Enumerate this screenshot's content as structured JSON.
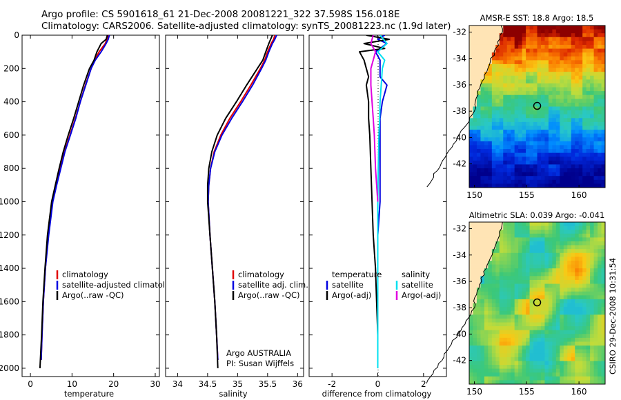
{
  "header": {
    "line1": "Argo profile: CS 5901618_61 21-Dec-2008 20081221_322 37.598S 156.018E",
    "line2": "Climatology: CARS2006. Satellite-adjusted climatology: synTS_20081223.nc (1.9d later)"
  },
  "colors": {
    "climatology": "#e00000",
    "satellite": "#0000e0",
    "argo": "#000000",
    "cyan": "#00e0f0",
    "magenta": "#e000e0"
  },
  "chart_data": [
    {
      "type": "line",
      "xlabel": "temperature",
      "ylabel": "",
      "xlim": [
        -2,
        31
      ],
      "ylim": [
        2050,
        0
      ],
      "xticks": [
        "0",
        "10",
        "20",
        "30"
      ],
      "xtick_values": [
        0,
        10,
        20,
        30
      ],
      "yticks": [
        "0",
        "200",
        "400",
        "600",
        "800",
        "1000",
        "1200",
        "1400",
        "1600",
        "1800",
        "2000"
      ],
      "ytick_values": [
        0,
        200,
        400,
        600,
        800,
        1000,
        1200,
        1400,
        1600,
        1800,
        2000
      ],
      "legend": [
        "climatology",
        "satellite-adjusted climatology",
        "Argo(..raw -QC)"
      ],
      "series": [
        {
          "name": "climatology",
          "color": "#e00000",
          "depth": [
            0,
            25,
            50,
            100,
            150,
            200,
            300,
            400,
            500,
            600,
            700,
            800,
            900,
            1000,
            1200,
            1400,
            1600,
            1800,
            1950
          ],
          "values": [
            18.8,
            18.4,
            18.0,
            16.5,
            15.5,
            14.6,
            13.2,
            12.0,
            10.8,
            9.5,
            8.2,
            7.2,
            6.2,
            5.3,
            4.3,
            3.6,
            3.1,
            2.8,
            2.6
          ]
        },
        {
          "name": "satellite-adjusted climatology",
          "color": "#0000e0",
          "depth": [
            0,
            25,
            50,
            100,
            150,
            200,
            300,
            400,
            500,
            600,
            700,
            800,
            900,
            1000,
            1200,
            1400,
            1600,
            1800,
            1950
          ],
          "values": [
            19.0,
            18.7,
            18.2,
            17.0,
            15.6,
            14.6,
            13.3,
            12.0,
            10.9,
            9.6,
            8.3,
            7.3,
            6.3,
            5.4,
            4.4,
            3.6,
            3.1,
            2.8,
            2.6
          ]
        },
        {
          "name": "Argo(..raw -QC)",
          "color": "#000000",
          "depth": [
            0,
            25,
            50,
            100,
            150,
            200,
            300,
            400,
            500,
            600,
            700,
            800,
            900,
            1000,
            1200,
            1400,
            1600,
            1800,
            2000
          ],
          "values": [
            18.5,
            18.2,
            17.0,
            16.0,
            15.3,
            14.2,
            12.8,
            11.6,
            10.4,
            9.1,
            7.9,
            6.9,
            6.0,
            5.1,
            4.1,
            3.5,
            3.0,
            2.7,
            2.3
          ]
        }
      ]
    },
    {
      "type": "line",
      "xlabel": "salinity",
      "xlim": [
        33.8,
        36.1
      ],
      "ylim": [
        2050,
        0
      ],
      "xticks": [
        "34",
        "34.5",
        "35",
        "35.5",
        "36"
      ],
      "xtick_values": [
        34,
        34.5,
        35,
        35.5,
        36
      ],
      "legend": [
        "climatology",
        "satellite adj. clim.",
        "Argo(..raw -QC)"
      ],
      "annotation": [
        "Argo AUSTRALIA",
        "PI: Susan Wijffels"
      ],
      "series": [
        {
          "name": "climatology",
          "color": "#e00000",
          "depth": [
            0,
            25,
            50,
            100,
            150,
            200,
            300,
            400,
            500,
            600,
            700,
            800,
            900,
            1000,
            1200,
            1400,
            1600,
            1800,
            1950
          ],
          "values": [
            35.62,
            35.6,
            35.56,
            35.5,
            35.45,
            35.38,
            35.22,
            35.05,
            34.87,
            34.72,
            34.61,
            34.55,
            34.52,
            34.51,
            34.54,
            34.58,
            34.62,
            34.65,
            34.67
          ]
        },
        {
          "name": "satellite adj. clim.",
          "color": "#0000e0",
          "depth": [
            0,
            25,
            50,
            100,
            150,
            200,
            300,
            400,
            500,
            600,
            700,
            800,
            900,
            1000,
            1200,
            1400,
            1600,
            1800,
            1950
          ],
          "values": [
            35.65,
            35.62,
            35.58,
            35.52,
            35.47,
            35.4,
            35.25,
            35.08,
            34.9,
            34.74,
            34.62,
            34.55,
            34.52,
            34.51,
            34.54,
            34.58,
            34.62,
            34.65,
            34.67
          ]
        },
        {
          "name": "Argo(..raw -QC)",
          "color": "#000000",
          "depth": [
            0,
            25,
            50,
            100,
            150,
            200,
            300,
            400,
            500,
            600,
            700,
            800,
            900,
            1000,
            1200,
            1400,
            1600,
            1800,
            2000
          ],
          "values": [
            35.58,
            35.55,
            35.52,
            35.47,
            35.42,
            35.33,
            35.15,
            34.98,
            34.8,
            34.66,
            34.57,
            34.52,
            34.5,
            34.5,
            34.54,
            34.58,
            34.62,
            34.65,
            34.67
          ]
        }
      ]
    },
    {
      "type": "line",
      "xlabel": "difference from climatology",
      "xlim": [
        -3.0,
        3.0
      ],
      "ylim": [
        2050,
        0
      ],
      "xticks": [
        "-2",
        "0",
        "2"
      ],
      "xtick_values": [
        -2,
        0,
        2
      ],
      "legend_left_title": "temperature",
      "legend_left": [
        "satellite",
        "Argo(-adj)"
      ],
      "legend_right_title": "salinity",
      "legend_right": [
        "satellite",
        "Argo(-adj)"
      ],
      "series": [
        {
          "name": "temperature satellite",
          "color": "#0000e0",
          "depth": [
            0,
            25,
            50,
            100,
            150,
            200,
            250,
            300,
            350,
            400,
            500,
            600,
            800,
            1000,
            1200,
            1400,
            1600,
            1800,
            2000
          ],
          "values": [
            0.3,
            0.0,
            0.4,
            -0.1,
            0.1,
            0.1,
            0.1,
            0.4,
            0.3,
            0.2,
            0.1,
            0.1,
            0.1,
            0.1,
            0.0,
            0.0,
            0.0,
            0.0,
            0.0
          ]
        },
        {
          "name": "temperature Argo(-adj)",
          "color": "#000000",
          "depth": [
            0,
            25,
            50,
            80,
            100,
            150,
            200,
            250,
            300,
            400,
            500,
            600,
            800,
            1000,
            1200,
            1400,
            1600,
            1800,
            1950
          ],
          "values": [
            -0.5,
            0.5,
            -0.6,
            0.3,
            -0.8,
            -0.6,
            -0.5,
            -0.4,
            -0.5,
            -0.4,
            -0.4,
            -0.35,
            -0.3,
            -0.25,
            -0.2,
            -0.1,
            -0.05,
            0.0,
            0.0
          ]
        },
        {
          "name": "salinity satellite",
          "color": "#00e0f0",
          "depth": [
            0,
            50,
            100,
            150,
            200,
            300,
            400,
            500,
            600,
            800,
            1000,
            1200,
            1400,
            1600,
            1800,
            2000
          ],
          "values": [
            0.1,
            0.4,
            0.0,
            0.3,
            0.2,
            0.15,
            0.1,
            0.08,
            0.05,
            0.02,
            0.0,
            0.0,
            0.0,
            0.0,
            0.0,
            0.0
          ]
        },
        {
          "name": "salinity Argo(-adj)",
          "color": "#e000e0",
          "depth": [
            0,
            50,
            100,
            150,
            200,
            300,
            400,
            500,
            600,
            800,
            1000
          ],
          "values": [
            -0.2,
            -0.3,
            -0.1,
            -0.2,
            -0.3,
            -0.3,
            -0.25,
            -0.2,
            -0.15,
            -0.1,
            0.0
          ]
        }
      ]
    }
  ],
  "maps": [
    {
      "title": "AMSR-E SST: 18.8 Argo: 18.5",
      "xticks": [
        "150",
        "155",
        "160"
      ],
      "xtick_values": [
        150,
        155,
        160
      ],
      "yticks": [
        "-32",
        "-34",
        "-36",
        "-38",
        "-40",
        "-42"
      ],
      "ytick_values": [
        -32,
        -34,
        -36,
        -38,
        -40,
        -42
      ],
      "lon_range": [
        149.5,
        162.5
      ],
      "lat_range": [
        -43.8,
        -31.5
      ],
      "marker": {
        "lon": 156.0,
        "lat": -37.6
      }
    },
    {
      "title": "Altimetric SLA: 0.039 Argo: -0.041",
      "xticks": [
        "150",
        "155",
        "160"
      ],
      "xtick_values": [
        150,
        155,
        160
      ],
      "yticks": [
        "-32",
        "-34",
        "-36",
        "-38",
        "-40",
        "-42"
      ],
      "ytick_values": [
        -32,
        -34,
        -36,
        -38,
        -40,
        -42
      ],
      "lon_range": [
        149.5,
        162.5
      ],
      "lat_range": [
        -43.8,
        -31.5
      ],
      "marker": {
        "lon": 156.0,
        "lat": -37.6
      }
    }
  ],
  "side_label": "CSIRO 29-Dec-2008 10:31:54"
}
